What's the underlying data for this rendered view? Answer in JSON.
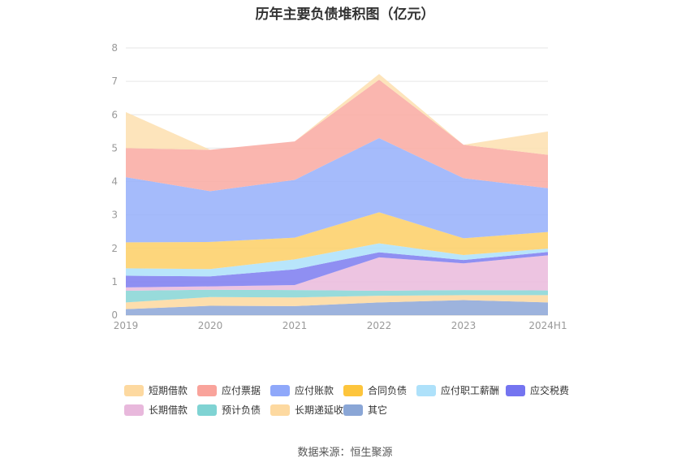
{
  "chart_data": {
    "type": "area",
    "stacked": true,
    "title": "历年主要负债堆积图（亿元）",
    "categories": [
      "2019",
      "2020",
      "2021",
      "2022",
      "2023",
      "2024H1"
    ],
    "ylim": [
      0,
      8
    ],
    "yticks": [
      0,
      1,
      2,
      3,
      4,
      5,
      6,
      7,
      8
    ],
    "grid": true,
    "legend_position": "bottom",
    "series": [
      {
        "name": "其它",
        "color": "#8fa8d8",
        "values": [
          0.18,
          0.28,
          0.27,
          0.38,
          0.45,
          0.38
        ]
      },
      {
        "name": "长期递延收益",
        "color": "#fdd9a0",
        "values": [
          0.2,
          0.26,
          0.26,
          0.2,
          0.15,
          0.22
        ]
      },
      {
        "name": "预计负债",
        "color": "#8ad6d6",
        "values": [
          0.35,
          0.22,
          0.22,
          0.15,
          0.15,
          0.14
        ]
      },
      {
        "name": "长期借款",
        "color": "#ebbcdd",
        "values": [
          0.1,
          0.1,
          0.15,
          1.0,
          0.8,
          1.05
        ]
      },
      {
        "name": "应交税费",
        "color": "#8080f0",
        "values": [
          0.35,
          0.3,
          0.47,
          0.15,
          0.1,
          0.1
        ]
      },
      {
        "name": "应付职工薪酬",
        "color": "#aee1fa",
        "values": [
          0.22,
          0.22,
          0.3,
          0.27,
          0.15,
          0.1
        ]
      },
      {
        "name": "合同负债",
        "color": "#fdd06a",
        "values": [
          0.78,
          0.81,
          0.65,
          0.93,
          0.5,
          0.5
        ]
      },
      {
        "name": "应付账款",
        "color": "#99b2fa",
        "values": [
          1.95,
          1.52,
          1.73,
          2.22,
          1.8,
          1.31
        ]
      },
      {
        "name": "应付票据",
        "color": "#f9aca4",
        "values": [
          0.87,
          1.24,
          1.15,
          1.75,
          1.0,
          1.0
        ]
      },
      {
        "name": "短期借款",
        "color": "#fde0b2",
        "values": [
          1.08,
          0.0,
          0.0,
          0.17,
          0.0,
          0.7
        ]
      }
    ]
  },
  "legend_order": [
    "短期借款",
    "应付票据",
    "应付账款",
    "合同负债",
    "应付职工薪酬",
    "应交税费",
    "长期借款",
    "预计负债",
    "长期递延收益",
    "其它"
  ],
  "legend_colors": {
    "短期借款": "#fdd9a0",
    "应付票据": "#f9a39b",
    "应付账款": "#8fa8fa",
    "合同负债": "#fdc53c",
    "应付职工薪酬": "#aee1fa",
    "应交税费": "#7474f0",
    "长期借款": "#e8b8dc",
    "预计负债": "#7fd3d3",
    "长期递延收益": "#fdd9a0",
    "其它": "#8aa6d6"
  },
  "source": "数据来源：恒生聚源"
}
